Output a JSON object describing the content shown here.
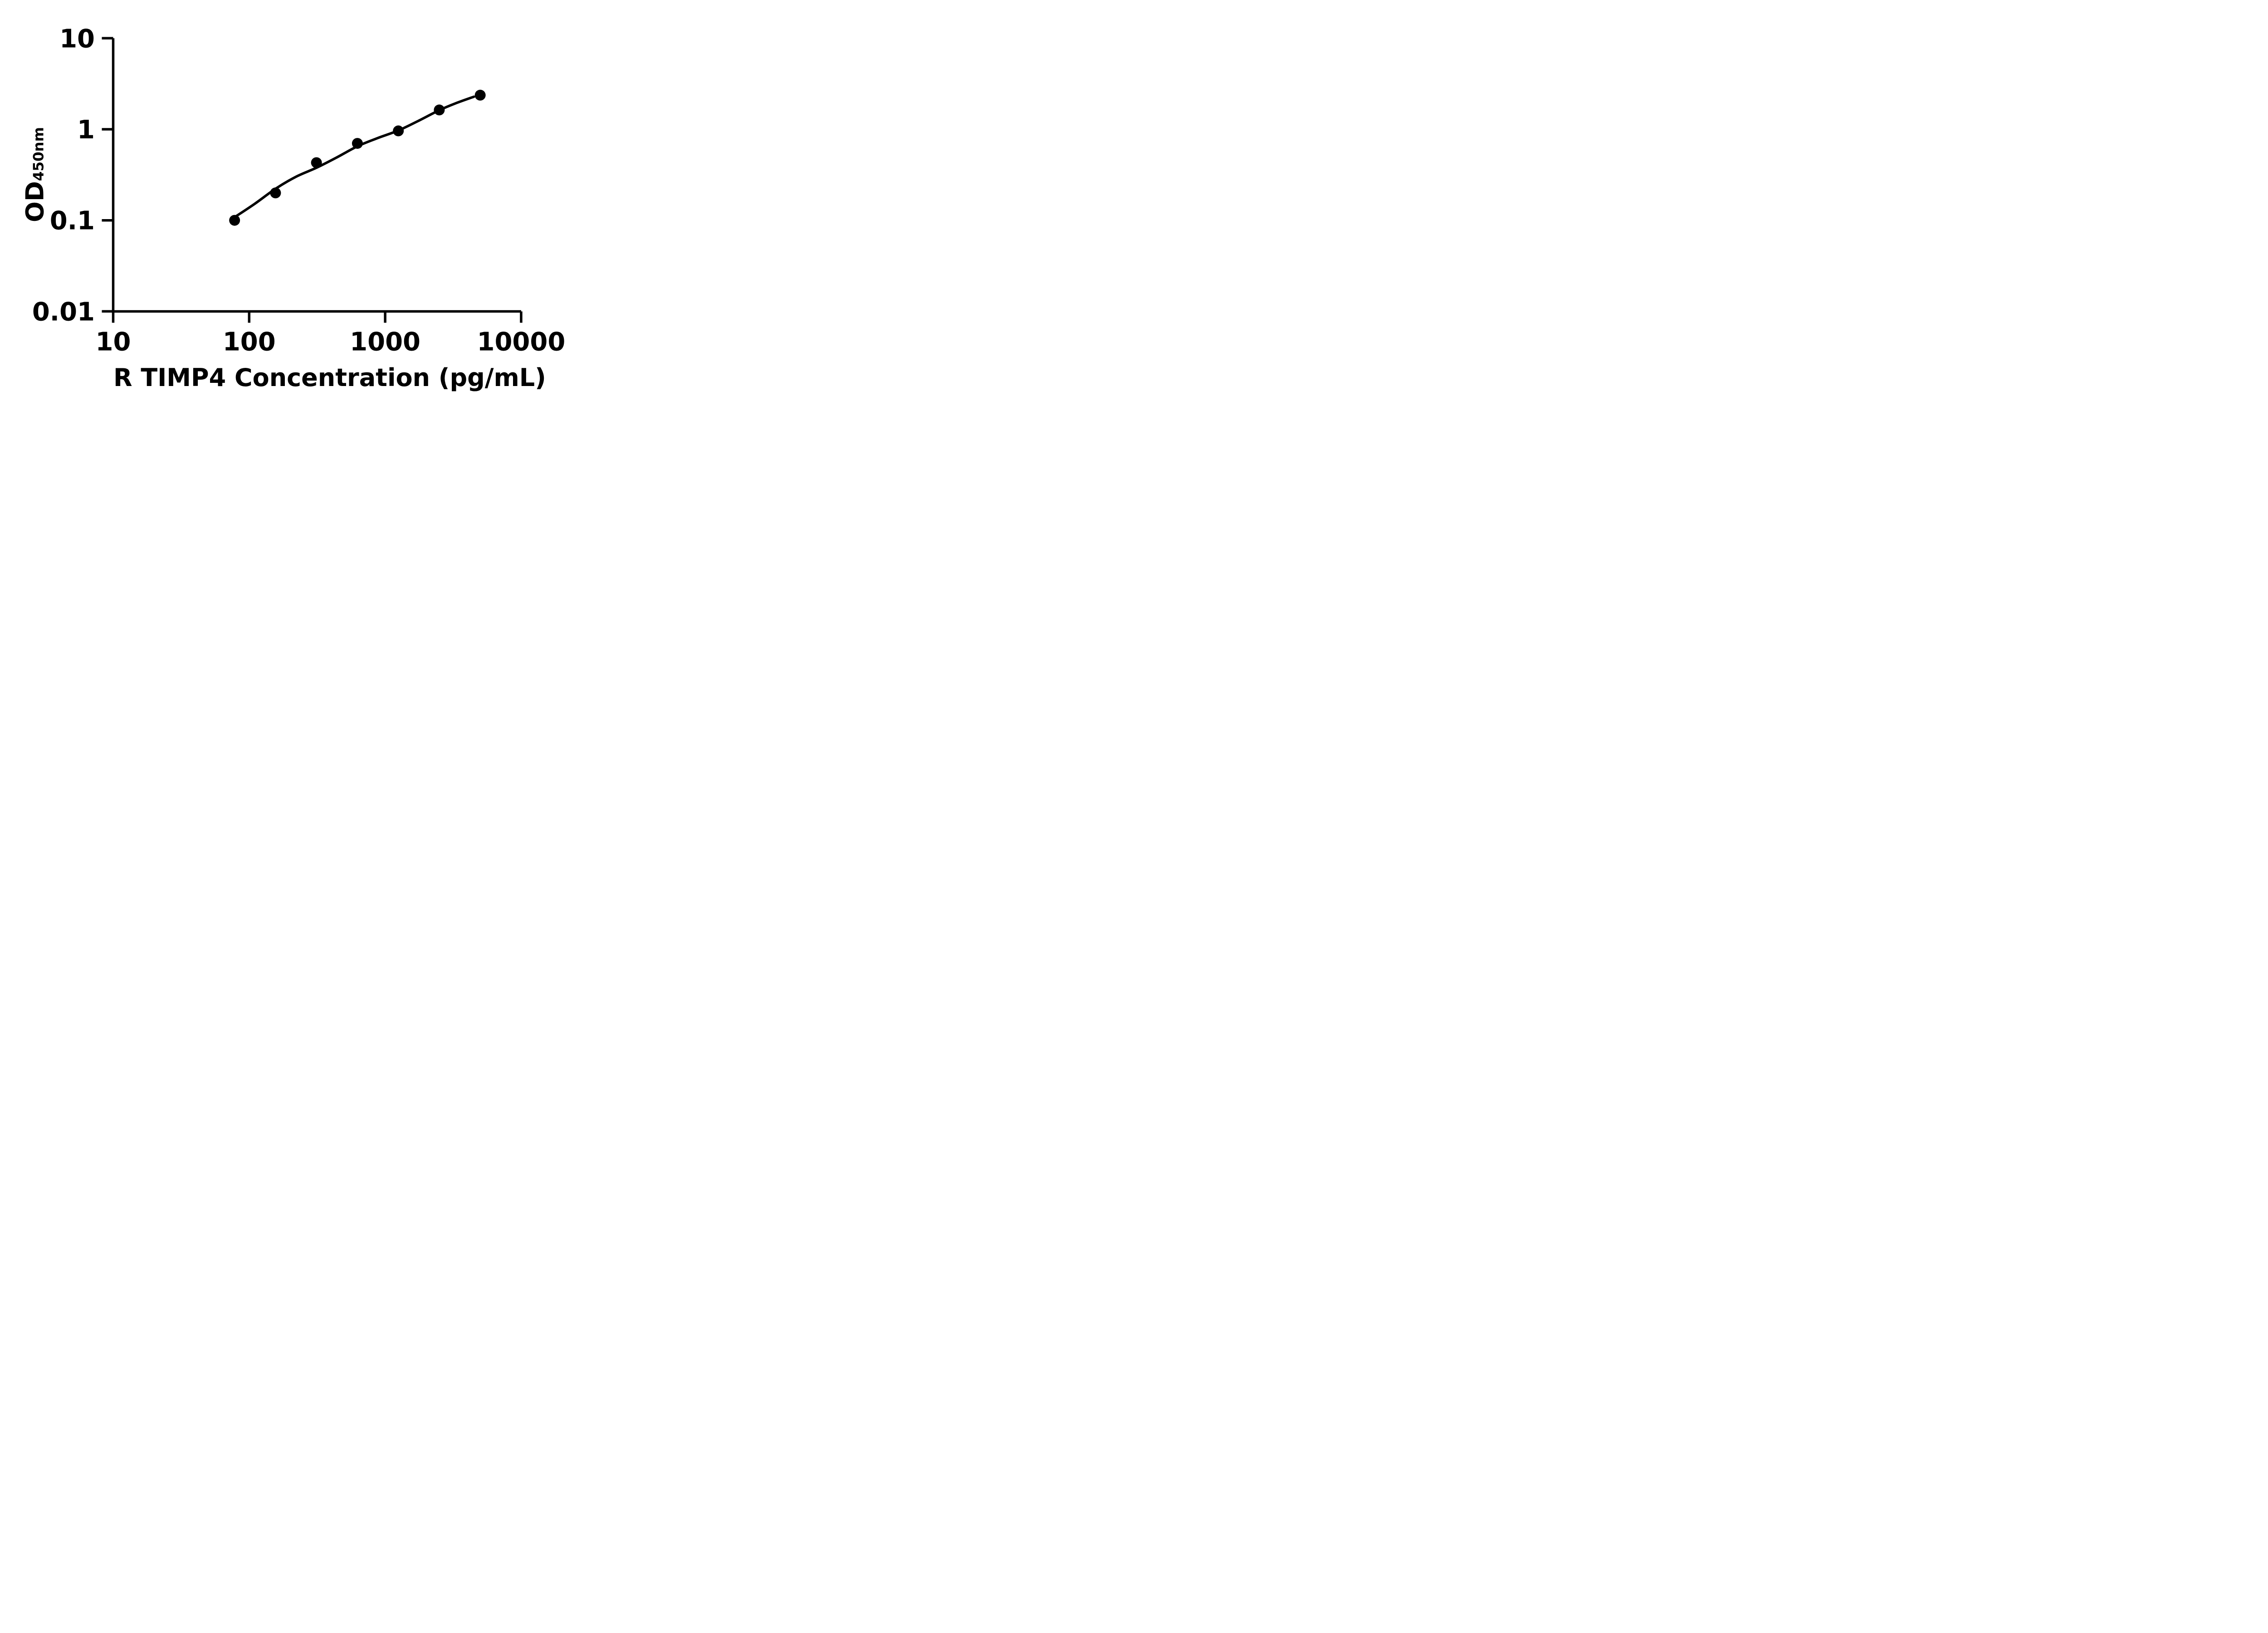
{
  "figure": {
    "background": "#ffffff",
    "ink_color": "#000000"
  },
  "chart_data": {
    "type": "scatter",
    "title": "",
    "xlabel": "R TIMP4 Concentration (pg/mL)",
    "ylabel_main": "OD",
    "ylabel_sub": "450nm",
    "x_scale": "log",
    "y_scale": "log",
    "xlim": [
      10,
      10000
    ],
    "ylim": [
      0.01,
      10
    ],
    "x_ticks": [
      10,
      100,
      1000,
      10000
    ],
    "x_tick_labels": [
      "10",
      "100",
      "1000",
      "10000"
    ],
    "y_ticks": [
      10,
      1,
      0.1,
      0.01
    ],
    "y_tick_labels": [
      "10",
      "1",
      "0.1",
      "0.01"
    ],
    "grid": false,
    "legend": false,
    "series": [
      {
        "name": "standard-curve-points",
        "marker": "circle",
        "color": "#000000",
        "points": [
          {
            "x": 78.125,
            "y": 0.1
          },
          {
            "x": 156.25,
            "y": 0.2
          },
          {
            "x": 312.5,
            "y": 0.43
          },
          {
            "x": 625,
            "y": 0.7
          },
          {
            "x": 1250,
            "y": 0.96
          },
          {
            "x": 2500,
            "y": 1.63
          },
          {
            "x": 5000,
            "y": 2.37
          }
        ]
      }
    ],
    "fit_curve": {
      "name": "four-parameter-logistic-fit",
      "color": "#000000",
      "points": [
        [
          78,
          0.108
        ],
        [
          110,
          0.152
        ],
        [
          156.25,
          0.222
        ],
        [
          220,
          0.3
        ],
        [
          312.5,
          0.378
        ],
        [
          440,
          0.49
        ],
        [
          625,
          0.65
        ],
        [
          880,
          0.8
        ],
        [
          1250,
          0.97
        ],
        [
          1760,
          1.24
        ],
        [
          2500,
          1.62
        ],
        [
          3300,
          1.93
        ],
        [
          4500,
          2.28
        ]
      ]
    }
  }
}
